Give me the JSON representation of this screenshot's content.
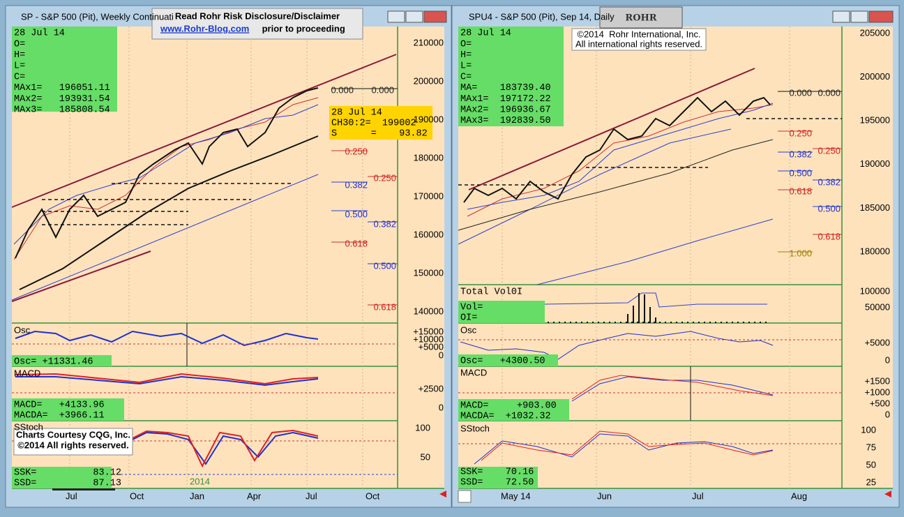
{
  "left_window": {
    "title": "SP - S&P 500 (Pit), Weekly Continuati",
    "info": [
      "28 Jul 14",
      "O=",
      "H=",
      "L=",
      "C=",
      "MAx1=   196051.11",
      "MAx2=   193931.54",
      "MAx3=   185808.54"
    ],
    "price_axis": [
      "210000",
      "200000",
      "190000",
      "180000",
      "170000",
      "160000",
      "150000",
      "140000"
    ],
    "fib_labels": [
      "0.000",
      "0.000",
      "0.250",
      "0.250",
      "0.382",
      "0.500",
      "0.382",
      "0.618",
      "0.500",
      "0.618"
    ],
    "cursor_box": [
      "28 Jul 14",
      "CH30:2=  199002",
      "S      =    93.82"
    ],
    "osc_label": "Osc",
    "osc_value": "Osc= +11331.46",
    "osc_axis": [
      "+15000",
      "+10000",
      "+5000",
      "0"
    ],
    "macd_label": "MACD",
    "macd_values": [
      "MACD=   +4133.96",
      "MACDA=  +3966.11"
    ],
    "macd_axis": [
      "+2500",
      "0"
    ],
    "sstoch_label": "SStoch",
    "sstoch_values": [
      "SSK=          83.12",
      "SSD=          87.13"
    ],
    "sstoch_axis": [
      "100",
      "50"
    ],
    "year_label": "2014",
    "x_axis": [
      "Jul",
      "Oct",
      "Jan",
      "Apr",
      "Jul",
      "Oct"
    ]
  },
  "right_window": {
    "title": "SPU4 - S&P 500 (Pit), Sep 14, Daily",
    "info": [
      "28 Jul 14",
      "O=",
      "H=",
      "L=",
      "C=",
      "MA=    183739.40",
      "MAx1=  197172.22",
      "MAx2=  196936.67",
      "MAx3=  192839.50"
    ],
    "price_axis": [
      "205000",
      "200000",
      "195000",
      "190000",
      "185000",
      "180000"
    ],
    "fib_labels": [
      "0.000",
      "0.000",
      "0.250",
      "0.250",
      "0.382",
      "0.500",
      "0.382",
      "0.618",
      "0.500",
      "0.618",
      "1.000"
    ],
    "vol_label": "Total Vol0I",
    "vol_values": [
      "Vol=",
      "OI="
    ],
    "vol_axis": [
      "100000",
      "50000"
    ],
    "osc_label": "Osc",
    "osc_value": "Osc=   +4300.50",
    "osc_axis": [
      "+5000",
      "0"
    ],
    "macd_label": "MACD",
    "macd_values": [
      "MACD=     +903.00",
      "MACDA=  +1032.32"
    ],
    "macd_axis": [
      "+1500",
      "+1000",
      "+500",
      "0"
    ],
    "sstoch_label": "SStoch",
    "sstoch_values": [
      "SSK=    70.16",
      "SSD=    72.50"
    ],
    "sstoch_axis": [
      "100",
      "75",
      "50",
      "25"
    ],
    "x_axis": [
      "May 14",
      "Jun",
      "Jul",
      "Aug"
    ]
  },
  "disclaimer": {
    "line1": "Read Rohr Risk Disclosure/Disclaimer",
    "link": "www.Rohr-Blog.com",
    "rest": " prior to proceeding"
  },
  "logo": "ROHR",
  "copyright": [
    "©2014  Rohr International, Inc.",
    "All international rights reserved."
  ],
  "courtesy": [
    "Charts Courtesy CQG, Inc.",
    "©2014 All rights reserved."
  ]
}
